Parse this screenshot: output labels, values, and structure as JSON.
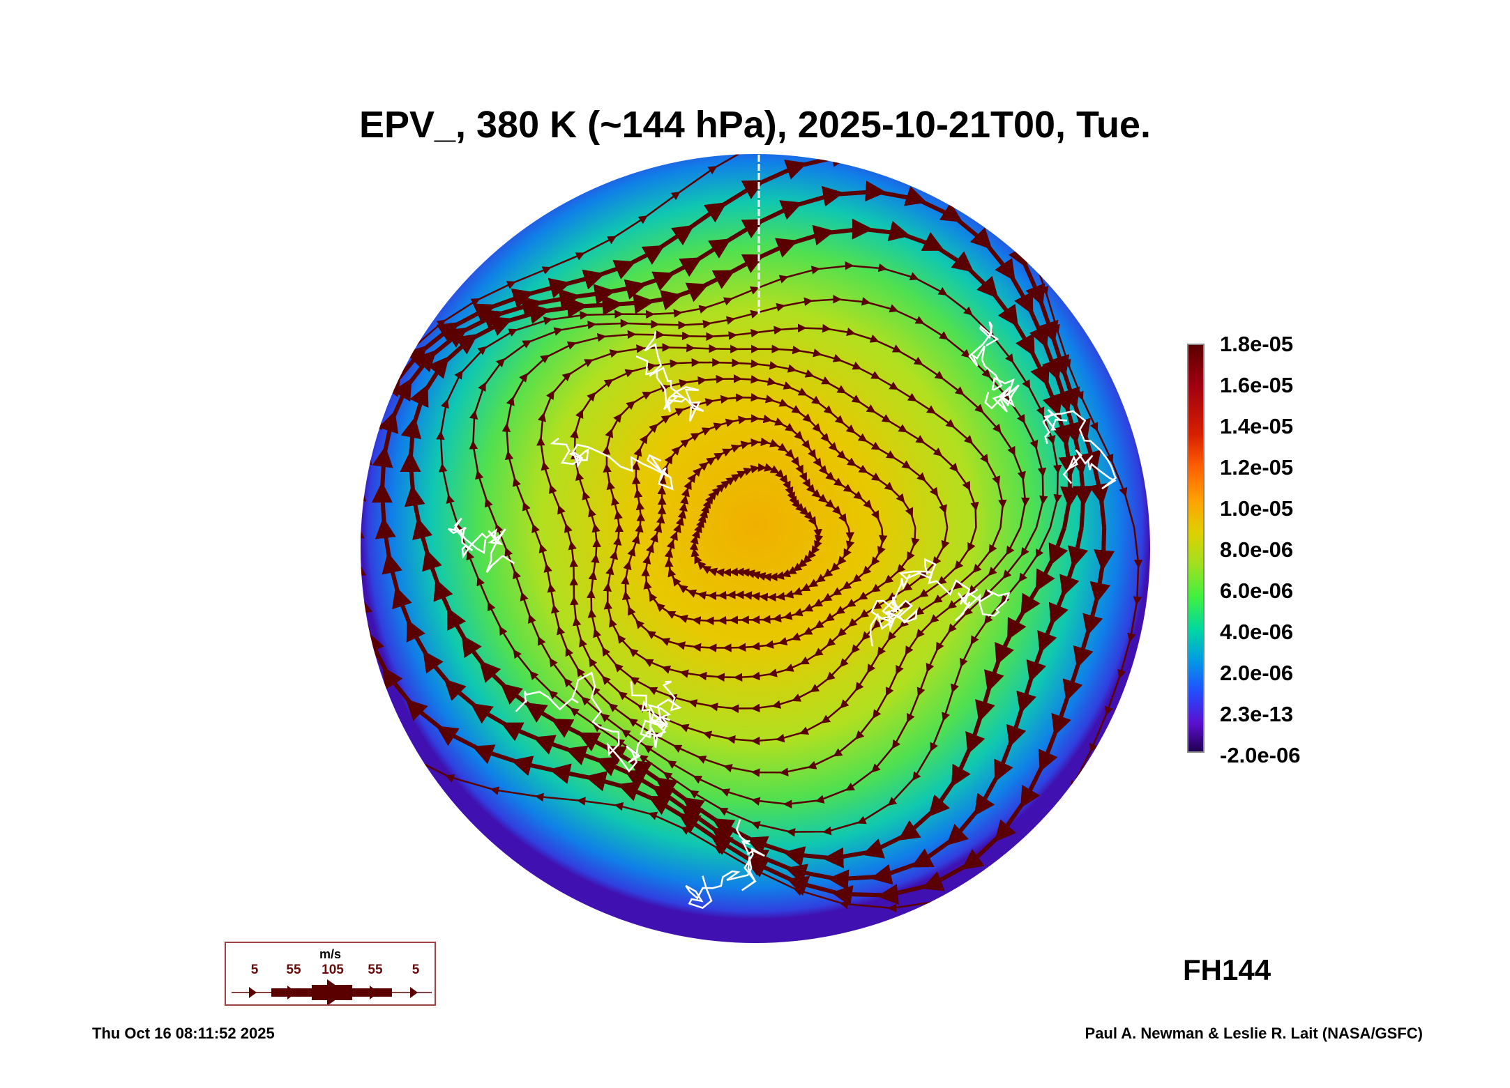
{
  "title": "EPV_, 380 K (~144 hPa), 2025-10-21T00, Tue.",
  "colorbar": {
    "ticks": [
      "1.8e-05",
      "1.6e-05",
      "1.4e-05",
      "1.2e-05",
      "1.0e-05",
      "8.0e-06",
      "6.0e-06",
      "4.0e-06",
      "2.0e-06",
      "2.3e-13",
      "-2.0e-06"
    ],
    "range": [
      -2e-06,
      1.8e-05
    ]
  },
  "forecast_hour": "FH144",
  "wind_legend": {
    "unit": "m/s",
    "labels": [
      "5",
      "55",
      "105",
      "55",
      "5"
    ]
  },
  "footer": {
    "timestamp": "Thu Oct 16 08:11:52 2025",
    "credit": "Paul A. Newman & Leslie R. Lait (NASA/GSFC)"
  },
  "colors": {
    "streamline": "#5a0000",
    "coastline": "#ffffff"
  }
}
